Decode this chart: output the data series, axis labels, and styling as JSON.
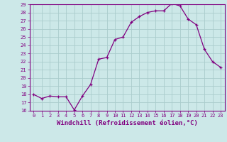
{
  "x": [
    0,
    1,
    2,
    3,
    4,
    5,
    6,
    7,
    8,
    9,
    10,
    11,
    12,
    13,
    14,
    15,
    16,
    17,
    18,
    19,
    20,
    21,
    22,
    23
  ],
  "y": [
    18,
    17.5,
    17.8,
    17.7,
    17.7,
    16.1,
    17.8,
    19.2,
    22.3,
    22.5,
    24.7,
    25.0,
    26.8,
    27.5,
    28.0,
    28.2,
    28.2,
    29.1,
    28.8,
    27.2,
    26.5,
    23.5,
    22.0,
    21.3
  ],
  "ylim": [
    16,
    29
  ],
  "xlim_min": -0.5,
  "xlim_max": 23.5,
  "yticks": [
    16,
    17,
    18,
    19,
    20,
    21,
    22,
    23,
    24,
    25,
    26,
    27,
    28,
    29
  ],
  "xticks": [
    0,
    1,
    2,
    3,
    4,
    5,
    6,
    7,
    8,
    9,
    10,
    11,
    12,
    13,
    14,
    15,
    16,
    17,
    18,
    19,
    20,
    21,
    22,
    23
  ],
  "xlabel": "Windchill (Refroidissement éolien,°C)",
  "line_color": "#800080",
  "marker": "+",
  "bg_color": "#cce8e8",
  "grid_color": "#aacccc",
  "tick_label_fontsize": 5,
  "xlabel_fontsize": 6.5,
  "tick_color": "#800080",
  "label_color": "#800080",
  "spine_color": "#800080"
}
